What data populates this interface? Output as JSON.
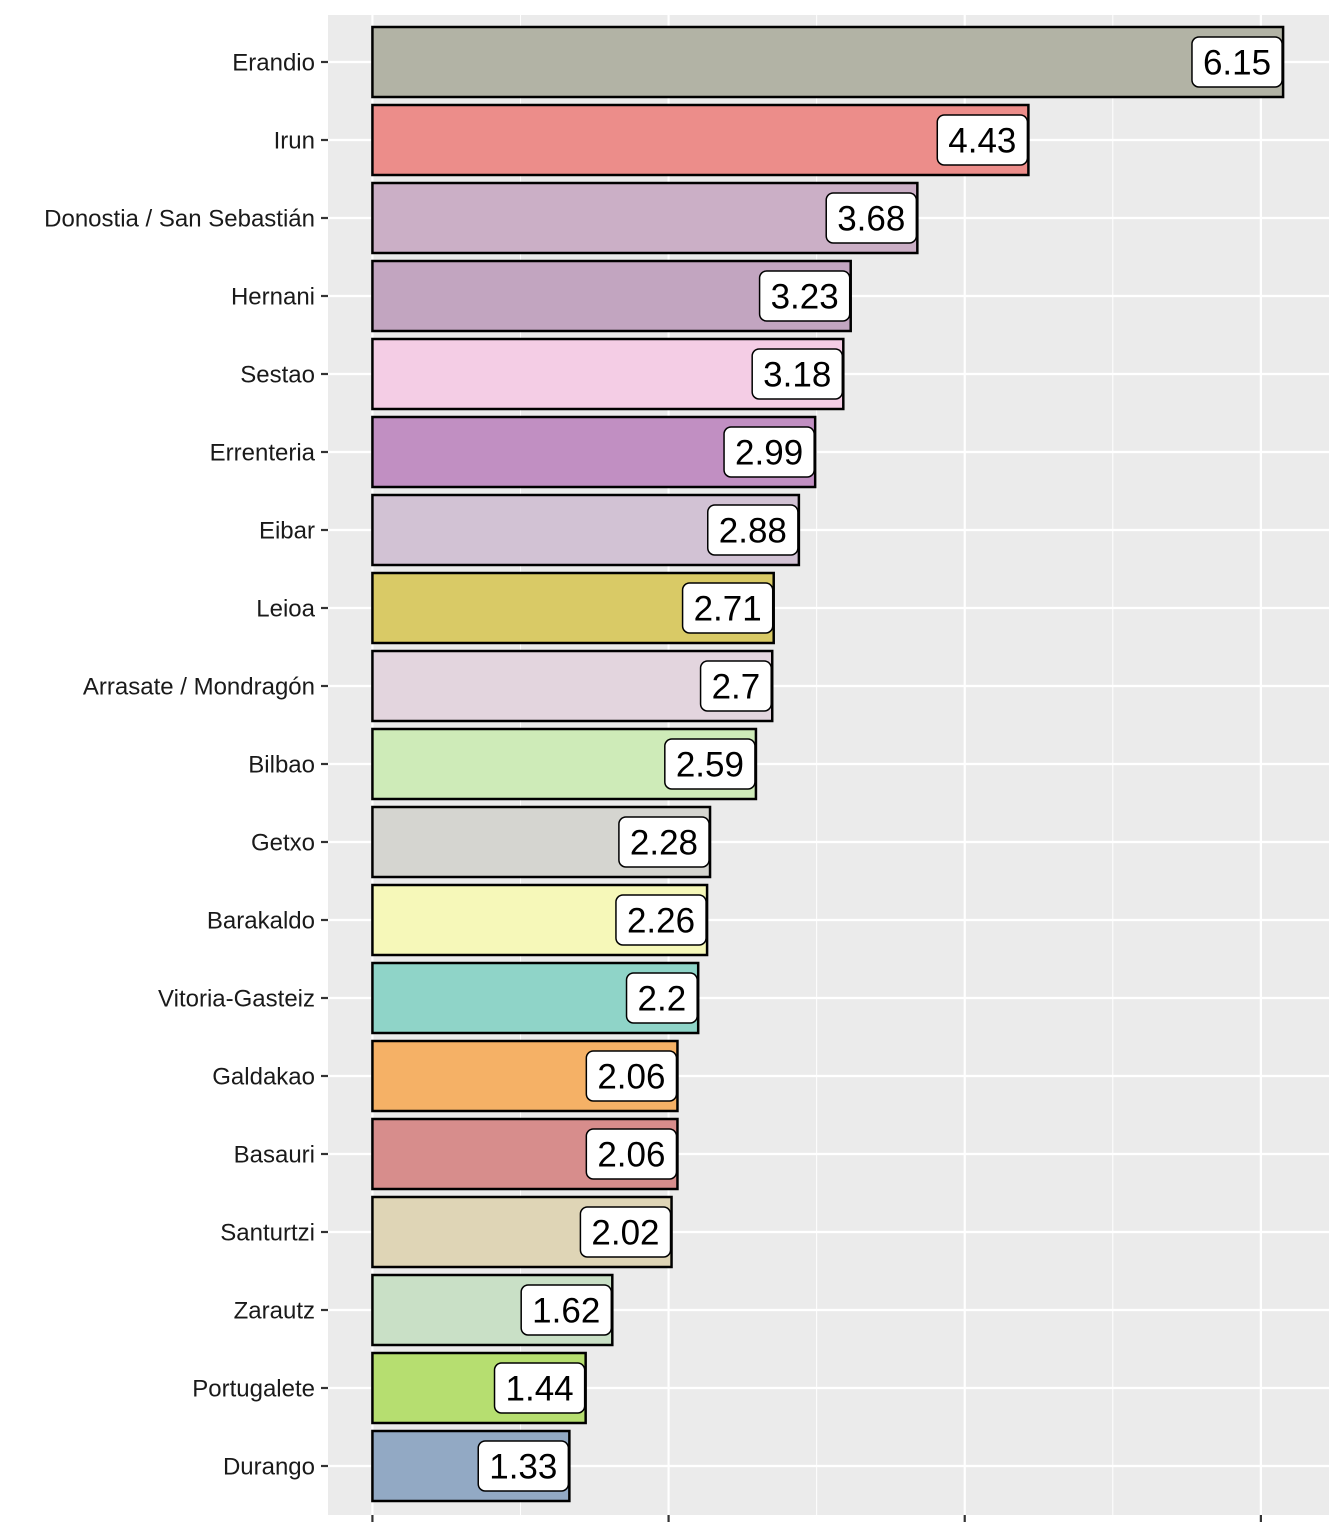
{
  "chart_data": {
    "type": "bar",
    "orientation": "horizontal",
    "title": "",
    "xlabel": "",
    "ylabel": "",
    "xlim": [
      -0.3,
      6.46
    ],
    "x_major_ticks": [
      0,
      2,
      4,
      6
    ],
    "x_minor_ticks": [
      1,
      3,
      5
    ],
    "grid": true,
    "legend": "none",
    "categories": [
      "Erandio",
      "Irun",
      "Donostia / San Sebastián",
      "Hernani",
      "Sestao",
      "Errenteria",
      "Eibar",
      "Leioa",
      "Arrasate / Mondragón",
      "Bilbao",
      "Getxo",
      "Barakaldo",
      "Vitoria-Gasteiz",
      "Galdakao",
      "Basauri",
      "Santurtzi",
      "Zarautz",
      "Portugalete",
      "Durango"
    ],
    "values": [
      6.15,
      4.43,
      3.68,
      3.23,
      3.18,
      2.99,
      2.88,
      2.71,
      2.7,
      2.59,
      2.28,
      2.26,
      2.2,
      2.06,
      2.06,
      2.02,
      1.62,
      1.44,
      1.33
    ],
    "data_labels": [
      "6.15",
      "4.43",
      "3.68",
      "3.23",
      "3.18",
      "2.99",
      "2.88",
      "2.71",
      "2.7",
      "2.59",
      "2.28",
      "2.26",
      "2.2",
      "2.06",
      "2.06",
      "2.02",
      "1.62",
      "1.44",
      "1.33"
    ],
    "colors": [
      "#b2b3a5",
      "#ec8d8a",
      "#cbafc6",
      "#c2a5c0",
      "#f4cde5",
      "#c18fc2",
      "#d2c2d4",
      "#d9ca66",
      "#e3d5de",
      "#ceebb8",
      "#d5d5d0",
      "#f6f8b9",
      "#8fd4c8",
      "#f5b166",
      "#d78d8c",
      "#dfd5b6",
      "#c9e0c6",
      "#b6de70",
      "#92a9c4"
    ]
  }
}
